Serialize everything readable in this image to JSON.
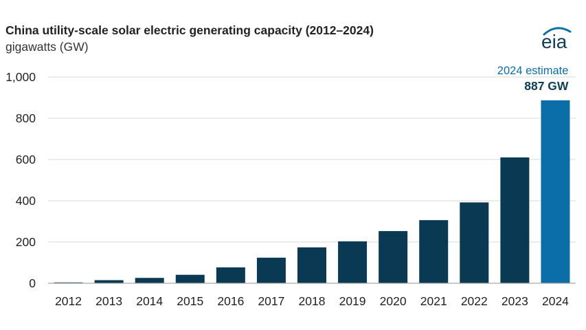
{
  "header": {
    "title": "China utility-scale solar electric generating capacity (2012–2024)",
    "subtitle": "gigawatts (GW)"
  },
  "logo": {
    "text": "eia",
    "icon": "eia-logo-icon"
  },
  "colors": {
    "bar": "#0a3953",
    "highlight": "#0b6ea8",
    "grid": "#d9d9d9",
    "axis": "#a6a6a6"
  },
  "chart_data": {
    "type": "bar",
    "title": "China utility-scale solar electric generating capacity (2012–2024)",
    "ylabel": "gigawatts (GW)",
    "xlabel": "",
    "categories": [
      "2012",
      "2013",
      "2014",
      "2015",
      "2016",
      "2017",
      "2018",
      "2019",
      "2020",
      "2021",
      "2022",
      "2023",
      "2024"
    ],
    "values": [
      4,
      15,
      26,
      41,
      77,
      124,
      174,
      203,
      253,
      306,
      392,
      610,
      887
    ],
    "highlight_index": 12,
    "ylim": [
      0,
      1000
    ],
    "yticks": [
      0,
      200,
      400,
      600,
      800,
      1000
    ],
    "ytick_labels": [
      "0",
      "200",
      "400",
      "600",
      "800",
      "1,000"
    ],
    "grid": true,
    "annotation": {
      "line1": "2024 estimate",
      "line2": "887 GW"
    }
  }
}
